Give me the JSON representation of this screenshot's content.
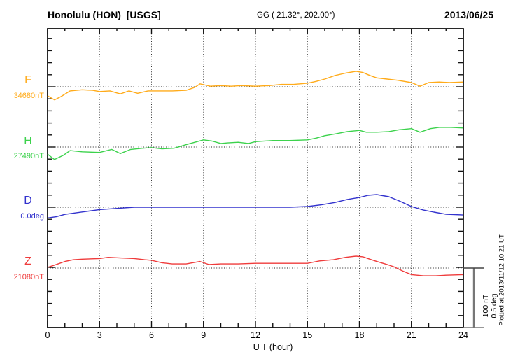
{
  "header": {
    "station": "Honolulu (HON)  [USGS]",
    "coords": "GG ( 21.32°, 202.00°)",
    "date": "2013/06/25"
  },
  "side": {
    "scale_label": "100 nT\n0.5 deg",
    "plotted_note": "Plotted at 2013/11/12 10:21 UT"
  },
  "chart_data": {
    "type": "line",
    "title": "USGS magnetogram, Honolulu (HON), 2013/06/25",
    "xlabel": "U T (hour)",
    "x_range": [
      0,
      24
    ],
    "x_ticks": [
      "0",
      "3",
      "6",
      "9",
      "12",
      "15",
      "18",
      "21",
      "24"
    ],
    "grid": "vertical dotted at 3-hour marks, dotted horizontal baseline per channel",
    "legend_position": "left margin channel labels",
    "scale_bar": {
      "nT_per_bar": 100,
      "deg_per_bar": 0.5
    },
    "series": [
      {
        "channel": "F",
        "baseline_label": "34680nT",
        "baseline_value": 34680,
        "unit": "nT",
        "color": "#ffab1a",
        "points": [
          [
            0,
            34665
          ],
          [
            0.4,
            34658
          ],
          [
            0.8,
            34664
          ],
          [
            1.3,
            34673
          ],
          [
            2,
            34675
          ],
          [
            2.6,
            34674
          ],
          [
            3,
            34672
          ],
          [
            3.6,
            34673
          ],
          [
            4.2,
            34668
          ],
          [
            4.7,
            34673
          ],
          [
            5.2,
            34669
          ],
          [
            5.8,
            34673
          ],
          [
            6.5,
            34673
          ],
          [
            7.2,
            34673
          ],
          [
            8,
            34674
          ],
          [
            8.5,
            34679
          ],
          [
            8.8,
            34685
          ],
          [
            9.1,
            34683
          ],
          [
            9.4,
            34681
          ],
          [
            10,
            34682
          ],
          [
            10.6,
            34681
          ],
          [
            11.2,
            34682
          ],
          [
            12,
            34681
          ],
          [
            12.8,
            34682
          ],
          [
            13.5,
            34684
          ],
          [
            14.2,
            34684
          ],
          [
            15,
            34686
          ],
          [
            15.5,
            34689
          ],
          [
            16,
            34693
          ],
          [
            16.6,
            34699
          ],
          [
            17.2,
            34703
          ],
          [
            17.8,
            34706
          ],
          [
            18.2,
            34704
          ],
          [
            18.6,
            34699
          ],
          [
            19,
            34695
          ],
          [
            19.6,
            34693
          ],
          [
            20.2,
            34691
          ],
          [
            21,
            34687
          ],
          [
            21.5,
            34681
          ],
          [
            22,
            34687
          ],
          [
            22.6,
            34688
          ],
          [
            23.2,
            34687
          ],
          [
            24,
            34688
          ]
        ]
      },
      {
        "channel": "H",
        "baseline_label": "27490nT",
        "baseline_value": 27490,
        "unit": "nT",
        "color": "#3cd24c",
        "points": [
          [
            0,
            27478
          ],
          [
            0.4,
            27469
          ],
          [
            0.9,
            27476
          ],
          [
            1.3,
            27484
          ],
          [
            2,
            27482
          ],
          [
            3,
            27481
          ],
          [
            3.7,
            27486
          ],
          [
            4.2,
            27479
          ],
          [
            4.8,
            27486
          ],
          [
            5.5,
            27488
          ],
          [
            6,
            27489
          ],
          [
            6.6,
            27487
          ],
          [
            7.3,
            27488
          ],
          [
            8,
            27494
          ],
          [
            8.5,
            27498
          ],
          [
            9,
            27502
          ],
          [
            9.5,
            27500
          ],
          [
            10,
            27496
          ],
          [
            10.4,
            27497
          ],
          [
            11,
            27498
          ],
          [
            11.6,
            27496
          ],
          [
            12,
            27499
          ],
          [
            13,
            27501
          ],
          [
            14,
            27501
          ],
          [
            15,
            27502
          ],
          [
            15.5,
            27505
          ],
          [
            16,
            27509
          ],
          [
            16.6,
            27512
          ],
          [
            17.3,
            27516
          ],
          [
            18,
            27518
          ],
          [
            18.4,
            27515
          ],
          [
            19,
            27515
          ],
          [
            19.7,
            27516
          ],
          [
            20.3,
            27519
          ],
          [
            21,
            27521
          ],
          [
            21.5,
            27515
          ],
          [
            22.1,
            27521
          ],
          [
            22.6,
            27523
          ],
          [
            23.3,
            27523
          ],
          [
            24,
            27522
          ]
        ]
      },
      {
        "channel": "D",
        "baseline_label": "0.0deg",
        "baseline_value": 0.0,
        "unit": "deg",
        "color": "#3232cd",
        "points": [
          [
            0,
            -0.09
          ],
          [
            0.5,
            -0.08
          ],
          [
            1,
            -0.06
          ],
          [
            2,
            -0.04
          ],
          [
            3,
            -0.02
          ],
          [
            4,
            -0.01
          ],
          [
            5,
            0.0
          ],
          [
            6,
            0.0
          ],
          [
            7,
            0.0
          ],
          [
            8,
            0.0
          ],
          [
            9,
            0.0
          ],
          [
            10,
            0.0
          ],
          [
            11,
            0.0
          ],
          [
            12,
            0.0
          ],
          [
            13,
            0.0
          ],
          [
            14,
            0.0
          ],
          [
            15,
            0.006
          ],
          [
            15.8,
            0.02
          ],
          [
            16.6,
            0.04
          ],
          [
            17.3,
            0.065
          ],
          [
            18,
            0.082
          ],
          [
            18.5,
            0.1
          ],
          [
            19,
            0.106
          ],
          [
            19.7,
            0.088
          ],
          [
            20.3,
            0.053
          ],
          [
            21,
            0.006
          ],
          [
            21.7,
            -0.024
          ],
          [
            22.3,
            -0.041
          ],
          [
            23,
            -0.059
          ],
          [
            24,
            -0.065
          ]
        ]
      },
      {
        "channel": "Z",
        "baseline_label": "21080nT",
        "baseline_value": 21080,
        "unit": "nT",
        "color": "#ef3b3b",
        "points": [
          [
            0,
            21081
          ],
          [
            0.5,
            21086
          ],
          [
            1,
            21091
          ],
          [
            1.5,
            21094
          ],
          [
            2,
            21095
          ],
          [
            3,
            21096
          ],
          [
            3.5,
            21098
          ],
          [
            4.2,
            21097
          ],
          [
            5,
            21096
          ],
          [
            5.6,
            21094
          ],
          [
            6,
            21093
          ],
          [
            6.6,
            21089
          ],
          [
            7.2,
            21087
          ],
          [
            8,
            21087
          ],
          [
            8.8,
            21091
          ],
          [
            9.3,
            21086
          ],
          [
            10,
            21087
          ],
          [
            11,
            21087
          ],
          [
            12,
            21088
          ],
          [
            13,
            21088
          ],
          [
            14,
            21088
          ],
          [
            15,
            21088
          ],
          [
            15.7,
            21092
          ],
          [
            16.5,
            21094
          ],
          [
            17.2,
            21098
          ],
          [
            17.8,
            21100
          ],
          [
            18.2,
            21099
          ],
          [
            18.6,
            21095
          ],
          [
            19,
            21091
          ],
          [
            19.6,
            21086
          ],
          [
            20,
            21082
          ],
          [
            20.5,
            21075
          ],
          [
            21,
            21069
          ],
          [
            21.7,
            21067
          ],
          [
            22.4,
            21067
          ],
          [
            23,
            21068
          ],
          [
            24,
            21069
          ]
        ]
      }
    ]
  }
}
